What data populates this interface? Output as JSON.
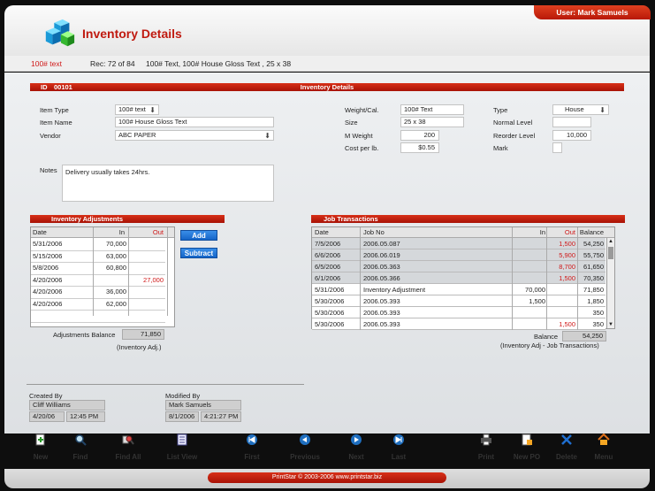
{
  "header": {
    "user_label": "User: Mark Samuels",
    "title": "Inventory Details"
  },
  "record_bar": {
    "item": "100# text",
    "rec": "Rec: 72 of 84",
    "desc": "100# Text, 100# House Gloss Text , 25 x 38"
  },
  "details": {
    "id_label": "ID",
    "id_value": "00101",
    "section_title": "Inventory Details",
    "item_type_label": "Item Type",
    "item_type": "100# text",
    "item_name_label": "Item Name",
    "item_name": "100# House Gloss Text",
    "vendor_label": "Vendor",
    "vendor": "ABC PAPER",
    "notes_label": "Notes",
    "notes": "Delivery usually takes 24hrs.",
    "weight_label": "Weight/Cal.",
    "weight": "100# Text",
    "size_label": "Size",
    "size": "25 x 38",
    "mweight_label": "M Weight",
    "mweight": "200",
    "cost_label": "Cost per lb.",
    "cost": "$0.55",
    "type_label": "Type",
    "type": "House",
    "normal_label": "Normal Level",
    "normal": "",
    "reorder_label": "Reorder Level",
    "reorder": "10,000",
    "mark_label": "Mark"
  },
  "adjustments": {
    "title": "Inventory Adjustments",
    "columns": [
      "Date",
      "In",
      "Out"
    ],
    "rows": [
      {
        "date": "5/31/2006",
        "in": "70,000",
        "out": ""
      },
      {
        "date": "5/15/2006",
        "in": "63,000",
        "out": ""
      },
      {
        "date": "5/8/2006",
        "in": "60,800",
        "out": ""
      },
      {
        "date": "4/20/2006",
        "in": "",
        "out": "27,000"
      },
      {
        "date": "4/20/2006",
        "in": "36,000",
        "out": ""
      },
      {
        "date": "4/20/2006",
        "in": "62,000",
        "out": ""
      }
    ],
    "add_label": "Add",
    "subtract_label": "Subtract",
    "balance_label": "Adjustments Balance",
    "balance": "71,850",
    "note": "(Inventory Adj.)"
  },
  "jobs": {
    "title": "Job Transactions",
    "columns": [
      "Date",
      "Job No",
      "In",
      "Out",
      "Balance"
    ],
    "rows": [
      {
        "date": "7/5/2006",
        "job": "2006.05.087",
        "in": "",
        "out": "1,500",
        "bal": "54,250"
      },
      {
        "date": "6/6/2006",
        "job": "2006.06.019",
        "in": "",
        "out": "5,900",
        "bal": "55,750"
      },
      {
        "date": "6/5/2006",
        "job": "2006.05.363",
        "in": "",
        "out": "8,700",
        "bal": "61,650"
      },
      {
        "date": "6/1/2006",
        "job": "2006.05.366",
        "in": "",
        "out": "1,500",
        "bal": "70,350"
      },
      {
        "date": "5/31/2006",
        "job": "Inventory Adjustment",
        "in": "70,000",
        "out": "",
        "bal": "71,850"
      },
      {
        "date": "5/30/2006",
        "job": "2006.05.393",
        "in": "1,500",
        "out": "",
        "bal": "1,850"
      },
      {
        "date": "5/30/2006",
        "job": "2006.05.393",
        "in": "",
        "out": "",
        "bal": "350"
      },
      {
        "date": "5/30/2006",
        "job": "2006.05.393",
        "in": "",
        "out": "1,500",
        "bal": "350"
      }
    ],
    "balance_label": "Balance",
    "balance": "54,250",
    "note": "(Inventory Adj - Job Transactions)"
  },
  "audit": {
    "created_label": "Created By",
    "created_by": "Cliff Williams",
    "created_date": "4/20/06",
    "created_time": "12:45 PM",
    "modified_label": "Modified By",
    "modified_by": "Mark Samuels",
    "modified_date": "8/1/2006",
    "modified_time": "4:21:27 PM"
  },
  "toolbar": {
    "new": "New",
    "find": "Find",
    "find_all": "Find All",
    "list_view": "List View",
    "first": "First",
    "previous": "Previous",
    "next": "Next",
    "last": "Last",
    "print": "Print",
    "new_po": "New PO",
    "delete": "Delete",
    "menu": "Menu"
  },
  "footer": {
    "text": "PrintStar © 2003-2006 www.printstar.biz"
  },
  "colors": {
    "accent": "#c01a10",
    "button": "#1565c8"
  }
}
